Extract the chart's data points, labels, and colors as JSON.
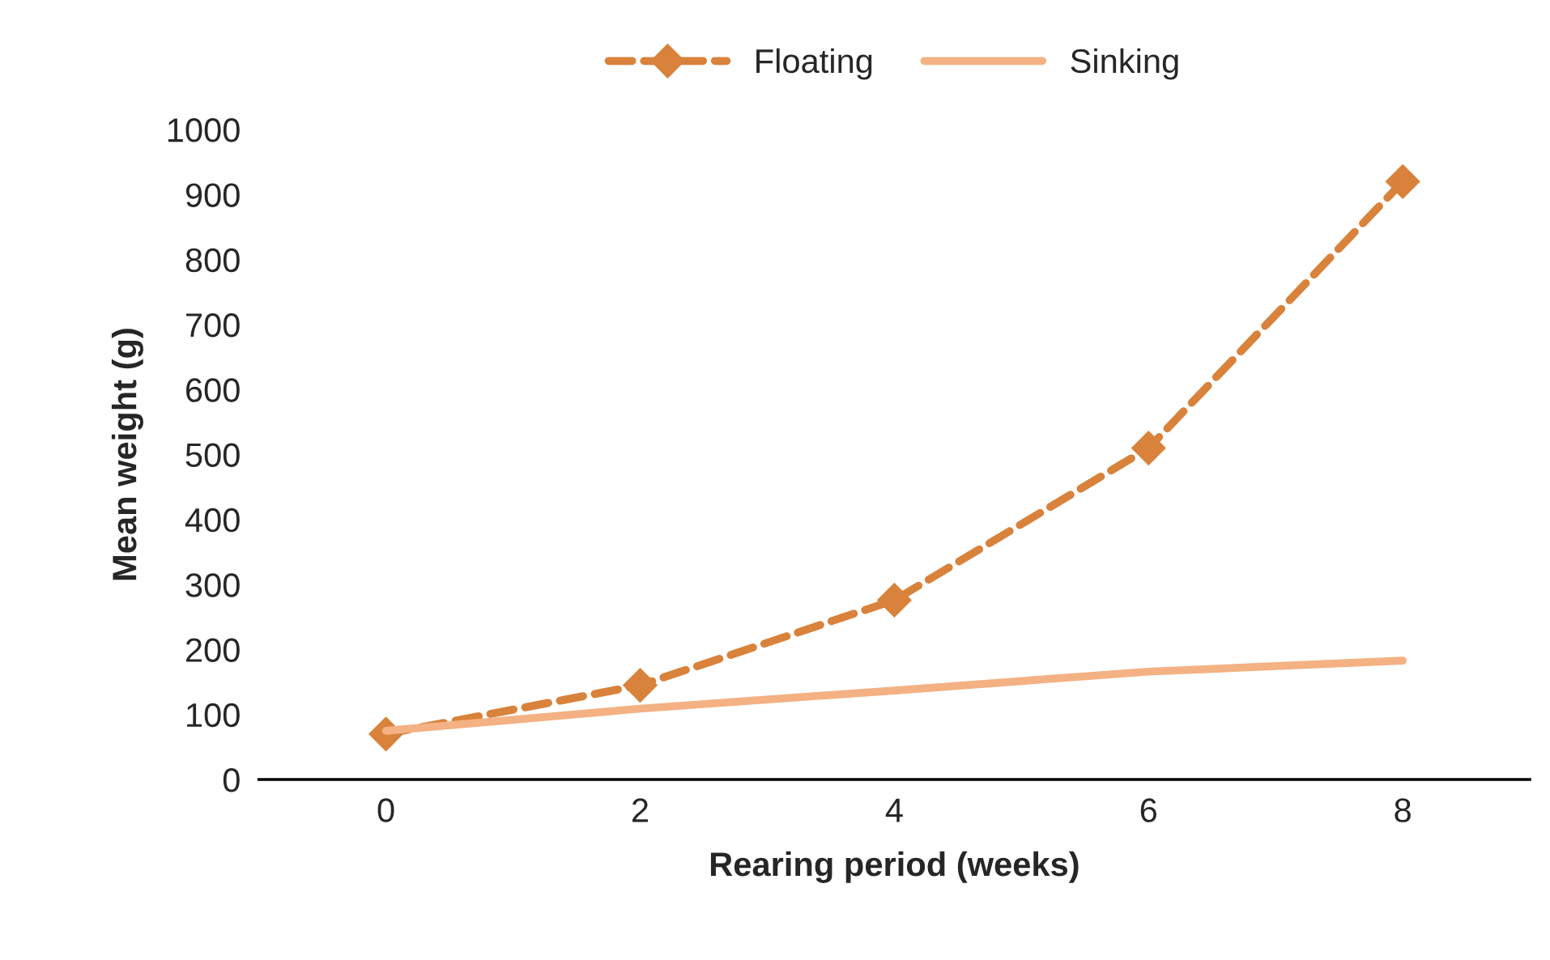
{
  "chart_data": {
    "type": "line",
    "xlabel": "Rearing period (weeks)",
    "ylabel": "Mean weight (g)",
    "categories": [
      "0",
      "2",
      "4",
      "6",
      "8"
    ],
    "series": [
      {
        "name": "Floating",
        "color": "#d9823b",
        "values": [
          70,
          145,
          276,
          510,
          920
        ],
        "marker": "diamond",
        "line_style": "dashed"
      },
      {
        "name": "Sinking",
        "color": "#f4b183",
        "values": [
          75,
          109,
          137,
          166,
          183
        ],
        "marker": "none",
        "line_style": "solid"
      }
    ],
    "ylim": [
      0,
      1000
    ],
    "yticks": [
      0,
      100,
      200,
      300,
      400,
      500,
      600,
      700,
      800,
      900,
      1000
    ],
    "grid": false,
    "legend": "top"
  }
}
